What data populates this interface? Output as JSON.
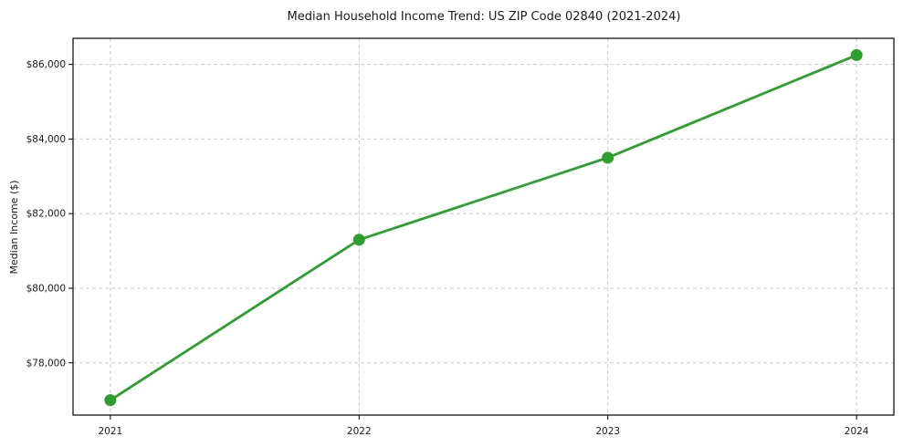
{
  "chart_data": {
    "type": "line",
    "title": "Median Household Income Trend: US ZIP Code 02840 (2021-2024)",
    "xlabel": "",
    "ylabel": "Median Income ($)",
    "categories": [
      2021,
      2022,
      2023,
      2024
    ],
    "x_tick_labels": [
      "2021",
      "2022",
      "2023",
      "2024"
    ],
    "values": [
      77000,
      81300,
      83500,
      86250
    ],
    "y_ticks": [
      {
        "value": 78000,
        "label": "$78,000"
      },
      {
        "value": 80000,
        "label": "$80,000"
      },
      {
        "value": 82000,
        "label": "$82,000"
      },
      {
        "value": 84000,
        "label": "$84,000"
      },
      {
        "value": 86000,
        "label": "$86,000"
      }
    ],
    "xlim": [
      2020.85,
      2024.15
    ],
    "ylim": [
      76600,
      86700
    ],
    "grid": true,
    "grid_style": "dashed",
    "legend": "none",
    "marker": "circle",
    "colors": {
      "line": "#2ca02c",
      "marker": "#2ca02c",
      "grid": "#cccccc",
      "spine": "#000000",
      "text": "#1a1a1a",
      "background": "#ffffff"
    }
  }
}
